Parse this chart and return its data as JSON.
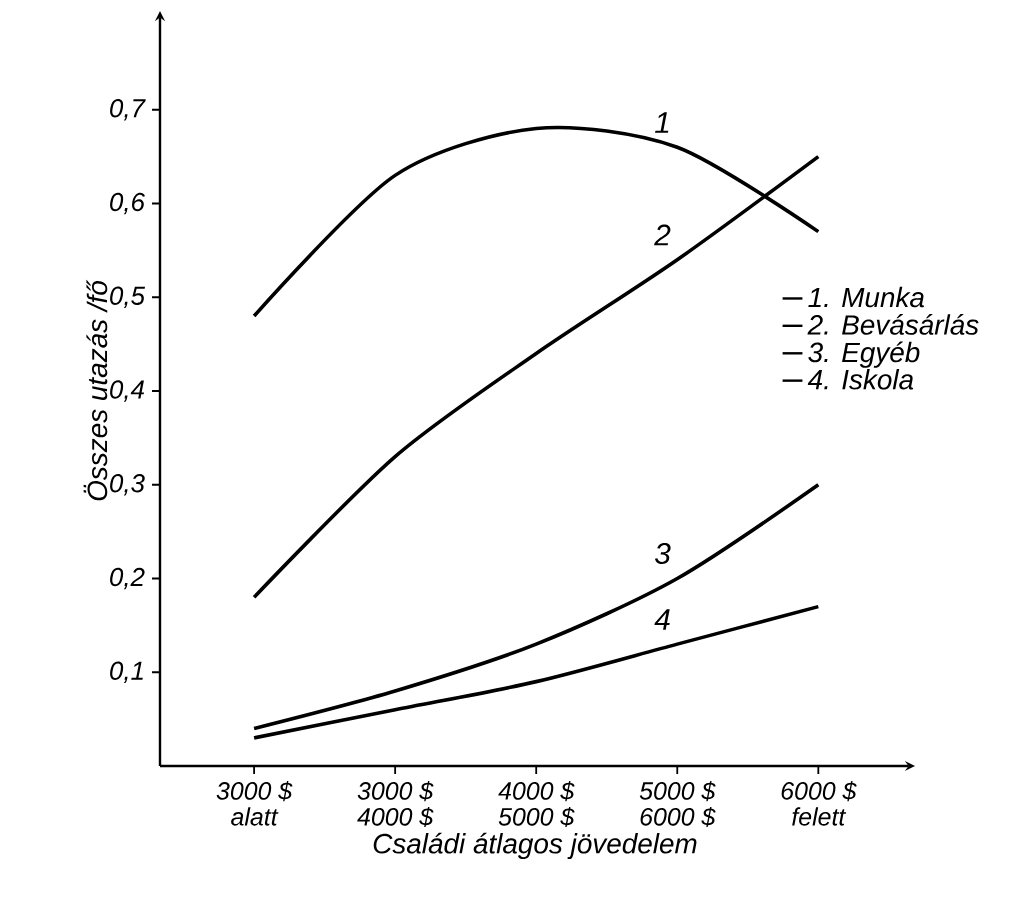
{
  "chart_data": {
    "type": "line",
    "xlabel": "Családi átlagos jövedelem",
    "ylabel": "Összes utazás /fő",
    "categories": [
      "3000 $ alatt",
      "3000 $ 4000 $",
      "4000 $ 5000 $",
      "5000 $ 6000 $",
      "6000 $ felett"
    ],
    "series": [
      {
        "name": "1. Munka",
        "color": "#000000",
        "values": [
          0.48,
          0.63,
          0.68,
          0.66,
          0.57
        ]
      },
      {
        "name": "2. Bevásárlás",
        "color": "#000000",
        "values": [
          0.18,
          0.33,
          0.44,
          0.54,
          0.65
        ]
      },
      {
        "name": "3. Egyéb",
        "color": "#000000",
        "values": [
          0.04,
          0.08,
          0.13,
          0.2,
          0.3
        ]
      },
      {
        "name": "4. Iskola",
        "color": "#000000",
        "values": [
          0.03,
          0.06,
          0.09,
          0.13,
          0.17
        ]
      }
    ],
    "ylim": [
      0,
      0.8
    ],
    "yticks": [
      {
        "value": 0.1,
        "label": "0,1"
      },
      {
        "value": 0.2,
        "label": "0,2"
      },
      {
        "value": 0.3,
        "label": "0,3"
      },
      {
        "value": 0.4,
        "label": "0,4"
      },
      {
        "value": 0.5,
        "label": "0,5"
      },
      {
        "value": 0.6,
        "label": "0,6"
      },
      {
        "value": 0.7,
        "label": "0,7"
      }
    ],
    "annotations": [
      {
        "text": "1",
        "x": "5000 $ 6000 $",
        "y": 0.66
      },
      {
        "text": "2",
        "x": "5000 $ 6000 $",
        "y": 0.54
      },
      {
        "text": "3",
        "x": "5000 $ 6000 $",
        "y": 0.2
      },
      {
        "text": "4",
        "x": "5000 $ 6000 $",
        "y": 0.13
      }
    ],
    "legend": "right",
    "marker": "none",
    "grid": false
  }
}
